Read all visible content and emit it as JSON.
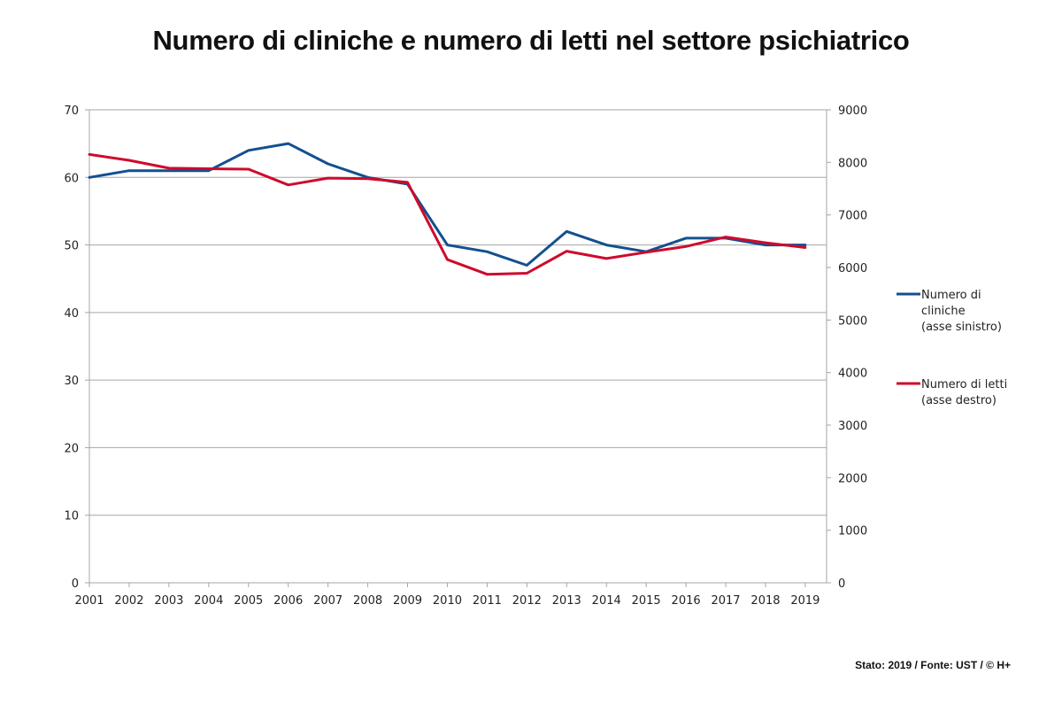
{
  "title": "Numero di cliniche e numero di letti nel settore psichiatrico",
  "footer": "Stato: 2019 / Fonte: UST / © H+",
  "chart_data": {
    "type": "line",
    "title": "Numero di cliniche e numero di letti nel settore psichiatrico",
    "xlabel": "",
    "x": [
      "2001",
      "2002",
      "2003",
      "2004",
      "2005",
      "2006",
      "2007",
      "2008",
      "2009",
      "2010",
      "2011",
      "2012",
      "2013",
      "2014",
      "2015",
      "2016",
      "2017",
      "2018",
      "2019"
    ],
    "y_left": {
      "label": "",
      "range": [
        0,
        70
      ],
      "ticks": [
        0,
        10,
        20,
        30,
        40,
        50,
        60,
        70
      ]
    },
    "y_right": {
      "label": "",
      "range": [
        0,
        9000
      ],
      "ticks": [
        0,
        1000,
        2000,
        3000,
        4000,
        5000,
        6000,
        7000,
        8000,
        9000
      ]
    },
    "grid": true,
    "legend_position": "right",
    "series": [
      {
        "name": "Numero di cliniche (asse sinistro)",
        "legend_lines": [
          "Numero di",
          "cliniche",
          "(asse sinistro)"
        ],
        "axis": "left",
        "color": "#13508f",
        "values": [
          60,
          61,
          61,
          61,
          64,
          65,
          62,
          60,
          59,
          50,
          49,
          47,
          52,
          50,
          49,
          51,
          51,
          50,
          50
        ]
      },
      {
        "name": "Numero di letti (asse destro)",
        "legend_lines": [
          "Numero di letti",
          "(asse destro)"
        ],
        "axis": "right",
        "color": "#cf0a2c",
        "values": [
          8150,
          8040,
          7890,
          7880,
          7870,
          7570,
          7700,
          7690,
          7620,
          6150,
          5870,
          5890,
          6310,
          6170,
          6290,
          6400,
          6580,
          6470,
          6380
        ]
      }
    ]
  }
}
